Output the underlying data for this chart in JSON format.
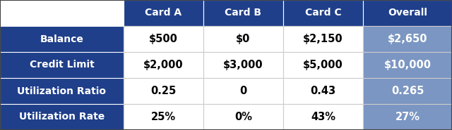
{
  "col_headers": [
    "",
    "Card A",
    "Card B",
    "Card C",
    "Overall"
  ],
  "rows": [
    [
      "Balance",
      "$500",
      "$0",
      "$2,150",
      "$2,650"
    ],
    [
      "Credit Limit",
      "$2,000",
      "$3,000",
      "$5,000",
      "$10,000"
    ],
    [
      "Utilization Ratio",
      "0.25",
      "0",
      "0.43",
      "0.265"
    ],
    [
      "Utilization Rate",
      "25%",
      "0%",
      "43%",
      "27%"
    ]
  ],
  "dark_blue": "#1F3F8A",
  "light_blue": "#7B96C2",
  "white": "#FFFFFF",
  "black": "#000000",
  "grid_line": "#CCCCCC",
  "figsize": [
    6.4,
    1.85
  ],
  "dpi": 100
}
